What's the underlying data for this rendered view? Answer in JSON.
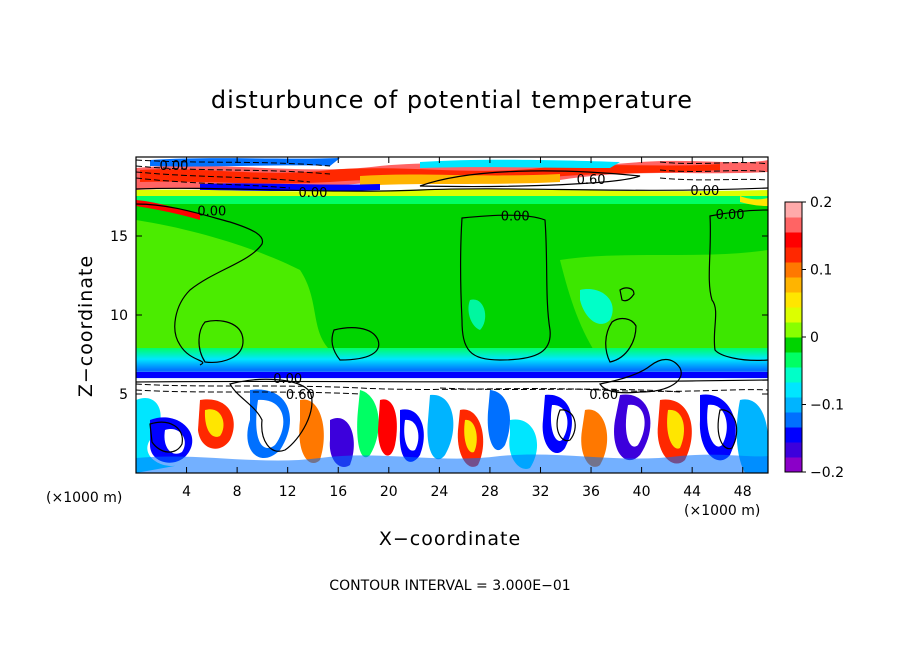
{
  "chart_data": {
    "type": "heatmap",
    "title": "disturbunce of potential temperature",
    "xlabel": "X−coordinate",
    "ylabel": "Z−coordinate",
    "x_unit_left": "(×1000 m)",
    "x_unit_right": "(×1000 m)",
    "xlim": [
      0,
      50
    ],
    "ylim": [
      0,
      20
    ],
    "x_ticks": [
      4,
      8,
      12,
      16,
      20,
      24,
      28,
      32,
      36,
      40,
      44,
      48
    ],
    "y_ticks": [
      5,
      10,
      15
    ],
    "colorbar": {
      "range": [
        -0.2,
        0.2
      ],
      "tick_values": [
        0.2,
        0.1,
        0,
        -0.1,
        -0.2
      ],
      "tick_labels": [
        "0.2",
        "0.1",
        "0",
        "−0.1",
        "−0.2"
      ],
      "colors": [
        "#8b00c8",
        "#3c00dc",
        "#0000ff",
        "#0070ff",
        "#00b4ff",
        "#00e6ff",
        "#00ffc8",
        "#00ff64",
        "#00d400",
        "#88ff00",
        "#dcff00",
        "#ffe600",
        "#ffb400",
        "#ff7800",
        "#ff2800",
        "#ff0000",
        "#ff6464",
        "#ffaaaa"
      ]
    },
    "contour_labels": [
      {
        "text": "0.00",
        "x": 3,
        "y": 19.5
      },
      {
        "text": "0.00",
        "x": 14,
        "y": 17.8
      },
      {
        "text": "0.60",
        "x": 36,
        "y": 18.6
      },
      {
        "text": "0.00",
        "x": 45,
        "y": 17.9
      },
      {
        "text": "0.00",
        "x": 6,
        "y": 16.6
      },
      {
        "text": "0.00",
        "x": 30,
        "y": 16.3
      },
      {
        "text": "0.00",
        "x": 47,
        "y": 16.4
      },
      {
        "text": "0.00",
        "x": 12,
        "y": 6.0
      },
      {
        "text": "0.60",
        "x": 13,
        "y": 5.0
      },
      {
        "text": "0.60",
        "x": 37,
        "y": 5.0
      }
    ],
    "footer": "CONTOUR INTERVAL = 3.000E−01"
  }
}
